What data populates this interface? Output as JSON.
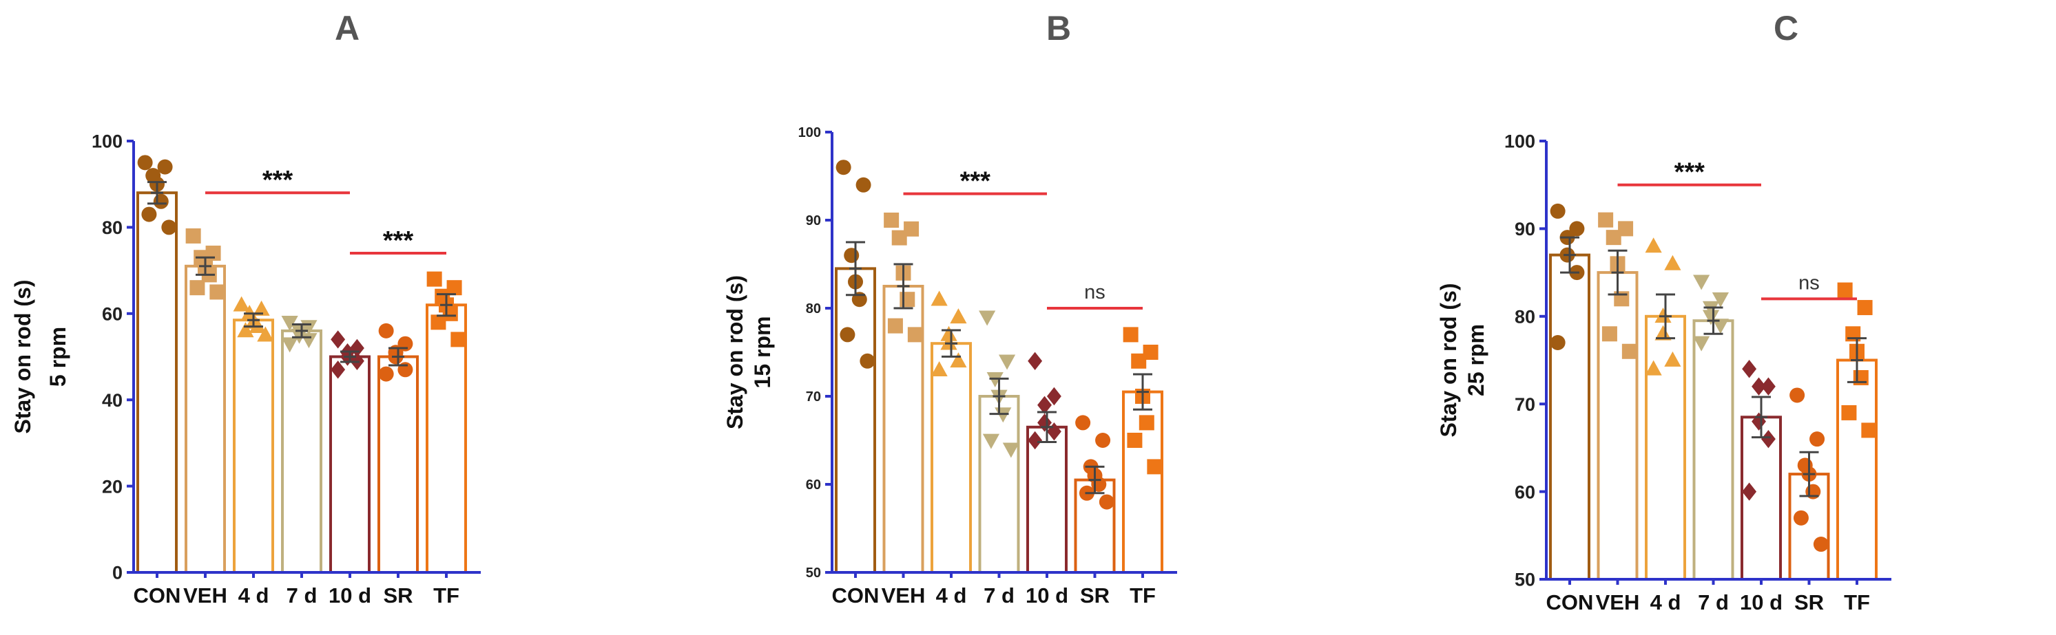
{
  "colors": {
    "CON": "#a15c12",
    "VEH": "#d9a05e",
    "4 d": "#eda33c",
    "7 d": "#bfb07e",
    "10 d": "#8a2a2e",
    "SR": "#dc6112",
    "TF": "#ee7616",
    "axis": "#2e33c9",
    "sigline": "#e8363c",
    "text": "#333333"
  },
  "chart_data": [
    {
      "panel_label": "A",
      "type": "bar",
      "ylabel": [
        "Stay on rod (s)",
        "5 rpm"
      ],
      "ylim": [
        0,
        100
      ],
      "yticks": [
        0,
        20,
        40,
        60,
        80,
        100
      ],
      "categories": [
        "CON",
        "VEH",
        "4 d",
        "7 d",
        "10 d",
        "SR",
        "TF"
      ],
      "means": [
        88,
        71,
        58.5,
        56,
        50,
        50,
        62
      ],
      "sem": [
        2.5,
        2.0,
        1.5,
        1.5,
        1.2,
        2.0,
        2.5
      ],
      "markers": [
        "circle",
        "square",
        "triangle",
        "triangle-down",
        "diamond",
        "circle",
        "square"
      ],
      "points": [
        [
          95,
          94,
          92,
          90,
          86,
          83,
          80
        ],
        [
          78,
          74,
          73,
          71,
          69,
          66,
          65
        ],
        [
          62,
          61,
          60,
          58,
          57,
          56,
          55
        ],
        [
          58,
          57,
          56,
          55,
          54,
          53
        ],
        [
          54,
          52,
          51,
          50,
          49,
          47
        ],
        [
          56,
          53,
          51,
          50,
          47,
          46
        ],
        [
          68,
          66,
          64,
          62,
          60,
          58,
          54
        ]
      ],
      "significance": [
        {
          "from": "VEH",
          "to": "10 d",
          "label": "***",
          "y": 88
        },
        {
          "from": "10 d",
          "to": "TF",
          "label": "***",
          "y": 74
        }
      ]
    },
    {
      "panel_label": "B",
      "type": "bar",
      "ylabel": [
        "Stay on rod (s)",
        "15 rpm"
      ],
      "ylim": [
        50,
        100
      ],
      "yticks": [
        50,
        60,
        70,
        80,
        90,
        100
      ],
      "categories": [
        "CON",
        "VEH",
        "4 d",
        "7 d",
        "10 d",
        "SR",
        "TF"
      ],
      "means": [
        84.5,
        82.5,
        76,
        70,
        66.5,
        60.5,
        70.5
      ],
      "sem": [
        3.0,
        2.5,
        1.5,
        2.0,
        1.7,
        1.5,
        2.0
      ],
      "markers": [
        "circle",
        "square",
        "triangle",
        "triangle-down",
        "diamond",
        "circle",
        "square"
      ],
      "points": [
        [
          96,
          94,
          86,
          83,
          81,
          77,
          74
        ],
        [
          90,
          89,
          88,
          84,
          81,
          78,
          77
        ],
        [
          81,
          79,
          77,
          76,
          74,
          73
        ],
        [
          79,
          74,
          72,
          70,
          68,
          65,
          64
        ],
        [
          74,
          70,
          69,
          67,
          66,
          65
        ],
        [
          67,
          65,
          62,
          61,
          60,
          59,
          58
        ],
        [
          77,
          75,
          74,
          70,
          67,
          65,
          62
        ]
      ],
      "significance": [
        {
          "from": "VEH",
          "to": "10 d",
          "label": "***",
          "y": 93
        },
        {
          "from": "10 d",
          "to": "TF",
          "label": "ns",
          "y": 80
        }
      ]
    },
    {
      "panel_label": "C",
      "type": "bar",
      "ylabel": [
        "Stay on rod (s)",
        "25 rpm"
      ],
      "ylim": [
        50,
        100
      ],
      "yticks": [
        50,
        60,
        70,
        80,
        90,
        100
      ],
      "categories": [
        "CON",
        "VEH",
        "4 d",
        "7 d",
        "10 d",
        "SR",
        "TF"
      ],
      "means": [
        87,
        85,
        80,
        79.5,
        68.5,
        62,
        75
      ],
      "sem": [
        2.0,
        2.5,
        2.5,
        1.5,
        2.3,
        2.5,
        2.5
      ],
      "markers": [
        "circle",
        "square",
        "triangle",
        "triangle-down",
        "diamond",
        "circle",
        "square"
      ],
      "points": [
        [
          92,
          90,
          89,
          87,
          85,
          77
        ],
        [
          91,
          90,
          89,
          86,
          82,
          78,
          76
        ],
        [
          88,
          86,
          80,
          78,
          75,
          74
        ],
        [
          84,
          82,
          81,
          80,
          79,
          77
        ],
        [
          74,
          72,
          72,
          68,
          66,
          60
        ],
        [
          71,
          66,
          63,
          62,
          60,
          57,
          54
        ],
        [
          83,
          81,
          78,
          76,
          73,
          69,
          67
        ]
      ],
      "significance": [
        {
          "from": "VEH",
          "to": "10 d",
          "label": "***",
          "y": 95
        },
        {
          "from": "10 d",
          "to": "TF",
          "label": "ns",
          "y": 82
        }
      ]
    }
  ]
}
